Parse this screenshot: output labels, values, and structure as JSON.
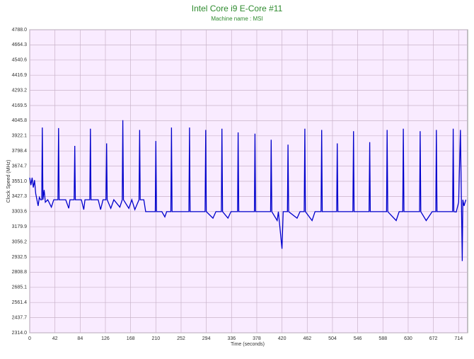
{
  "chart_data": {
    "type": "line",
    "title": "Intel Core i9 E-Core #11",
    "subtitle": "Machine name : MSI",
    "x_label": "Time (seconds)",
    "y_label": "Clock Speed (MHz)",
    "xlim": [
      0,
      729
    ],
    "ylim": [
      2314,
      4788
    ],
    "xticks": [
      0,
      42,
      84,
      126,
      168,
      210,
      252,
      294,
      336,
      378,
      420,
      462,
      504,
      546,
      588,
      630,
      672,
      714
    ],
    "yticks": [
      {
        "value": 2314,
        "label": "2314.0"
      },
      2437.7,
      2561.4,
      2685.1,
      2808.8,
      2932.5,
      3056.2,
      3179.9,
      3303.6,
      3427.3,
      {
        "value": 3551,
        "label": "3551.0"
      },
      3674.7,
      3798.4,
      3922.1,
      4045.8,
      4169.5,
      4293.2,
      4416.9,
      4540.6,
      4664.3,
      {
        "value": 4788,
        "label": "4788.0"
      }
    ],
    "grid": true,
    "series": [
      {
        "name": "Clock Speed",
        "color": "#0000cc",
        "x": [
          0,
          2,
          4,
          6,
          8,
          10,
          12,
          14,
          16,
          18,
          20,
          21,
          22,
          24,
          26,
          30,
          36,
          40,
          47,
          48,
          49,
          60,
          65,
          67,
          74,
          75,
          76,
          86,
          90,
          92,
          100,
          101,
          102,
          114,
          118,
          122,
          127,
          128,
          129,
          135,
          140,
          150,
          154,
          155,
          156,
          165,
          170,
          175,
          182,
          183,
          184,
          190,
          193,
          209,
          210,
          211,
          220,
          225,
          228,
          235,
          236,
          237,
          250,
          265,
          266,
          267,
          280,
          292,
          293,
          294,
          305,
          310,
          319,
          320,
          321,
          330,
          335,
          346,
          347,
          348,
          360,
          374,
          375,
          376,
          390,
          401,
          402,
          403,
          412,
          414,
          420,
          422,
          429,
          430,
          431,
          445,
          450,
          457,
          458,
          459,
          470,
          475,
          485,
          486,
          487,
          500,
          511,
          512,
          513,
          525,
          538,
          539,
          540,
          552,
          565,
          566,
          567,
          580,
          594,
          595,
          596,
          610,
          615,
          621,
          622,
          623,
          632,
          640,
          649,
          650,
          651,
          660,
          670,
          676,
          677,
          678,
          690,
          704,
          705,
          706,
          710,
          714,
          717,
          720,
          721,
          723,
          726
        ],
        "values": [
          3580,
          3520,
          3580,
          3500,
          3560,
          3450,
          3400,
          3350,
          3420,
          3400,
          3400,
          3990,
          3400,
          3480,
          3380,
          3400,
          3340,
          3400,
          3400,
          3985,
          3400,
          3400,
          3330,
          3400,
          3400,
          3840,
          3400,
          3400,
          3320,
          3400,
          3400,
          3980,
          3400,
          3400,
          3320,
          3400,
          3400,
          3860,
          3400,
          3330,
          3400,
          3340,
          3400,
          4050,
          3400,
          3330,
          3400,
          3320,
          3400,
          3970,
          3400,
          3400,
          3303,
          3303,
          3880,
          3303,
          3303,
          3260,
          3303,
          3303,
          3990,
          3303,
          3303,
          3303,
          3990,
          3303,
          3303,
          3303,
          3970,
          3303,
          3250,
          3303,
          3303,
          3980,
          3303,
          3250,
          3303,
          3303,
          3950,
          3303,
          3303,
          3303,
          3940,
          3303,
          3303,
          3303,
          3890,
          3303,
          3230,
          3303,
          3000,
          3303,
          3303,
          3850,
          3303,
          3250,
          3303,
          3303,
          3980,
          3303,
          3230,
          3303,
          3303,
          3970,
          3303,
          3303,
          3303,
          3860,
          3303,
          3303,
          3303,
          3960,
          3303,
          3303,
          3303,
          3870,
          3303,
          3303,
          3303,
          3970,
          3303,
          3230,
          3303,
          3303,
          3980,
          3303,
          3303,
          3303,
          3303,
          3960,
          3303,
          3230,
          3303,
          3303,
          3970,
          3303,
          3303,
          3303,
          3980,
          3303,
          3300,
          3380,
          3970,
          2900,
          3400,
          3350,
          3400
        ]
      }
    ]
  }
}
